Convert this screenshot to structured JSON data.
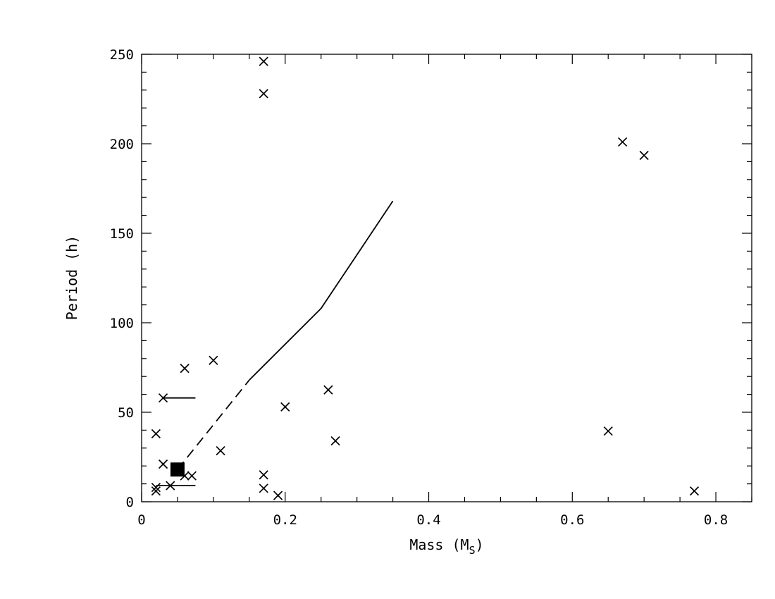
{
  "chart_data": {
    "type": "scatter",
    "title": "",
    "xlabel": "Mass (M",
    "xlabel_sub": "S",
    "xlabel_close": ")",
    "ylabel": "Period (h)",
    "xlim": [
      0,
      0.85
    ],
    "ylim": [
      0,
      250
    ],
    "x_ticks": [
      0,
      0.2,
      0.4,
      0.6,
      0.8
    ],
    "x_tick_labels": [
      "0",
      "0.2",
      "0.4",
      "0.6",
      "0.8"
    ],
    "y_ticks": [
      0,
      50,
      100,
      150,
      200,
      250
    ],
    "y_tick_labels": [
      "0",
      "50",
      "100",
      "150",
      "200",
      "250"
    ],
    "x_minor_step": 0.05,
    "y_minor_step": 10,
    "grid": false,
    "series": [
      {
        "marker": "cross",
        "points": [
          {
            "x": 0.17,
            "y": 246
          },
          {
            "x": 0.17,
            "y": 228
          },
          {
            "x": 0.67,
            "y": 201
          },
          {
            "x": 0.7,
            "y": 193.5
          },
          {
            "x": 0.1,
            "y": 79
          },
          {
            "x": 0.06,
            "y": 74.5
          },
          {
            "x": 0.26,
            "y": 62.5
          },
          {
            "x": 0.03,
            "y": 58
          },
          {
            "x": 0.2,
            "y": 53
          },
          {
            "x": 0.65,
            "y": 39.5
          },
          {
            "x": 0.02,
            "y": 38
          },
          {
            "x": 0.27,
            "y": 34
          },
          {
            "x": 0.11,
            "y": 28.5
          },
          {
            "x": 0.03,
            "y": 21
          },
          {
            "x": 0.17,
            "y": 15
          },
          {
            "x": 0.06,
            "y": 14.5
          },
          {
            "x": 0.07,
            "y": 14.5
          },
          {
            "x": 0.04,
            "y": 9
          },
          {
            "x": 0.02,
            "y": 8
          },
          {
            "x": 0.17,
            "y": 7.5
          },
          {
            "x": 0.02,
            "y": 6
          },
          {
            "x": 0.77,
            "y": 6
          },
          {
            "x": 0.19,
            "y": 3.5
          }
        ]
      },
      {
        "marker": "filled-square",
        "points": [
          {
            "x": 0.05,
            "y": 18
          }
        ]
      }
    ],
    "limit_lines": [
      {
        "x": [
          0.03,
          0.075
        ],
        "y": 58
      },
      {
        "x": [
          0.02,
          0.075
        ],
        "y": 9
      }
    ],
    "curve_dashed": {
      "x": [
        0.05,
        0.15
      ],
      "y": [
        18,
        68
      ]
    },
    "curve_solid": {
      "x": [
        0.15,
        0.25,
        0.35
      ],
      "y": [
        68,
        108,
        168
      ]
    }
  }
}
